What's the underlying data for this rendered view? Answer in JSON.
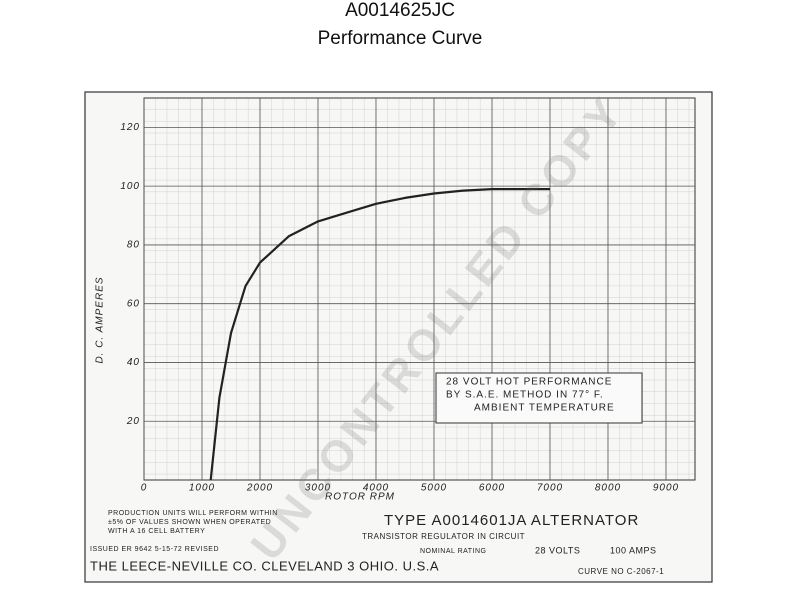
{
  "chart_data": {
    "type": "line",
    "title": "A0014625JC",
    "subtitle": "Performance Curve",
    "x_label": "ROTOR RPM",
    "y_label": "D. C. AMPERES",
    "x": [
      1150,
      1300,
      1500,
      1750,
      2000,
      2500,
      3000,
      3500,
      4000,
      4500,
      5000,
      5500,
      6000,
      7000
    ],
    "series": [
      {
        "values": [
          0,
          28,
          50,
          66,
          74,
          83,
          88,
          91,
          94,
          96,
          97.5,
          98.5,
          99,
          99
        ],
        "color": "#222"
      }
    ],
    "xlim": [
      0,
      9500
    ],
    "ylim": [
      0,
      130
    ],
    "xticks": [
      0,
      1000,
      2000,
      3000,
      4000,
      5000,
      6000,
      7000,
      8000,
      9000
    ],
    "yticks": [
      20,
      40,
      60,
      80,
      100,
      120
    ],
    "grid": true,
    "annotation": [
      "28 VOLT HOT PERFORMANCE",
      "BY S.A.E. METHOD IN 77° F.",
      "AMBIENT TEMPERATURE"
    ],
    "production_note": [
      "PRODUCTION UNITS WILL PERFORM WITHIN",
      "±5% OF VALUES SHOWN WHEN OPERATED",
      "WITH A 16 CELL BATTERY"
    ],
    "model": "TYPE A0014601JA ALTERNATOR",
    "regulator": "TRANSISTOR REGULATOR IN CIRCUIT",
    "rating_label": "NOMINAL RATING",
    "rating_volts": "28 VOLTS",
    "rating_amps": "100 AMPS",
    "issued": "ISSUED ER 9642 5-15-72 REVISED",
    "maker": "THE LEECE-NEVILLE CO. CLEVELAND 3 OHIO. U.S.A",
    "curve_no": "CURVE NO C-2067-1",
    "watermark": "UNCONTROLLED COPY"
  }
}
